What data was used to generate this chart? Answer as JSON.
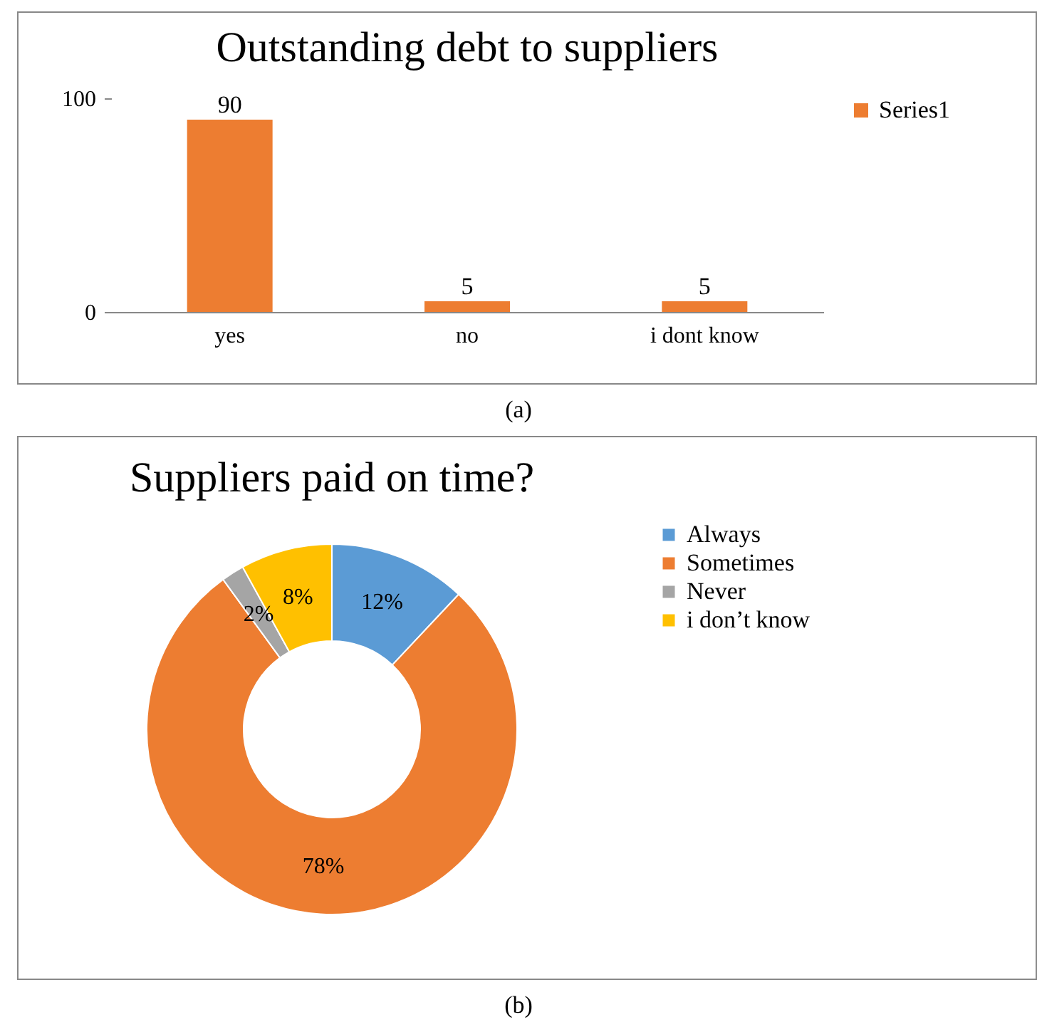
{
  "chart_data": [
    {
      "type": "bar",
      "title": "Outstanding debt to suppliers",
      "categories": [
        "yes",
        "no",
        "i dont know"
      ],
      "series": [
        {
          "name": "Series1",
          "color": "#ed7d31",
          "values": [
            90,
            5,
            5
          ]
        }
      ],
      "ylim": [
        0,
        100
      ],
      "yticks": [
        0,
        100
      ],
      "data_labels": true,
      "legend": "right",
      "grid": false,
      "annotations": [
        "(a)"
      ]
    },
    {
      "type": "donut",
      "title": "Suppliers paid on time?",
      "categories": [
        "Always",
        "Sometimes",
        "Never",
        "i don’t know"
      ],
      "values": [
        12,
        78,
        2,
        8
      ],
      "colors": [
        "#5b9bd5",
        "#ed7d31",
        "#a5a5a5",
        "#ffc000"
      ],
      "value_labels": [
        "12%",
        "78%",
        "2%",
        "8%"
      ],
      "legend": "right",
      "annotations": [
        "(b)"
      ]
    }
  ]
}
